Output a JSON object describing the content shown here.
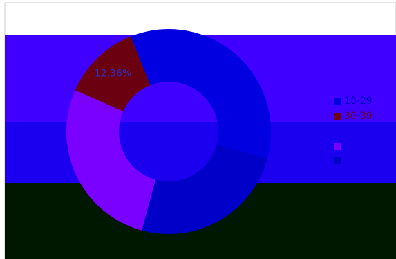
{
  "chart_data": {
    "type": "donut",
    "categories": [
      "18-29",
      "30-39",
      null,
      null
    ],
    "values": [
      35.2,
      12.36,
      27.4,
      25.04
    ],
    "value_labels": [
      null,
      "12.36%",
      null,
      null
    ],
    "colors": [
      "#0000e0",
      "#6a0010",
      "#7a00ff",
      "#0000c8"
    ],
    "legend": "right"
  }
}
